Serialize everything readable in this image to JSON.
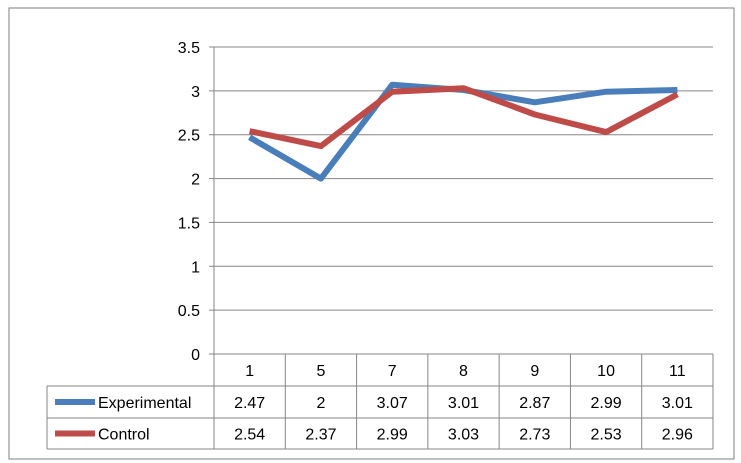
{
  "chart_data": {
    "type": "line",
    "categories": [
      "1",
      "5",
      "7",
      "8",
      "9",
      "10",
      "11"
    ],
    "series": [
      {
        "name": "Experimental",
        "values": [
          2.47,
          2,
          3.07,
          3.01,
          2.87,
          2.99,
          3.01
        ],
        "color": "#4a7ebb"
      },
      {
        "name": "Control",
        "values": [
          2.54,
          2.37,
          2.99,
          3.03,
          2.73,
          2.53,
          2.96
        ],
        "color": "#be4b48"
      }
    ],
    "y_ticks": [
      "0",
      "0.5",
      "1",
      "1.5",
      "2",
      "2.5",
      "3",
      "3.5"
    ],
    "value_labels": [
      [
        "2.47",
        "2",
        "3.07",
        "3.01",
        "2.87",
        "2.99",
        "3.01"
      ],
      [
        "2.54",
        "2.37",
        "2.99",
        "3.03",
        "2.73",
        "2.53",
        "2.96"
      ]
    ],
    "ylim": [
      0,
      3.5
    ],
    "grid": true,
    "legend": "data-table",
    "title": "",
    "xlabel": "",
    "ylabel": ""
  }
}
